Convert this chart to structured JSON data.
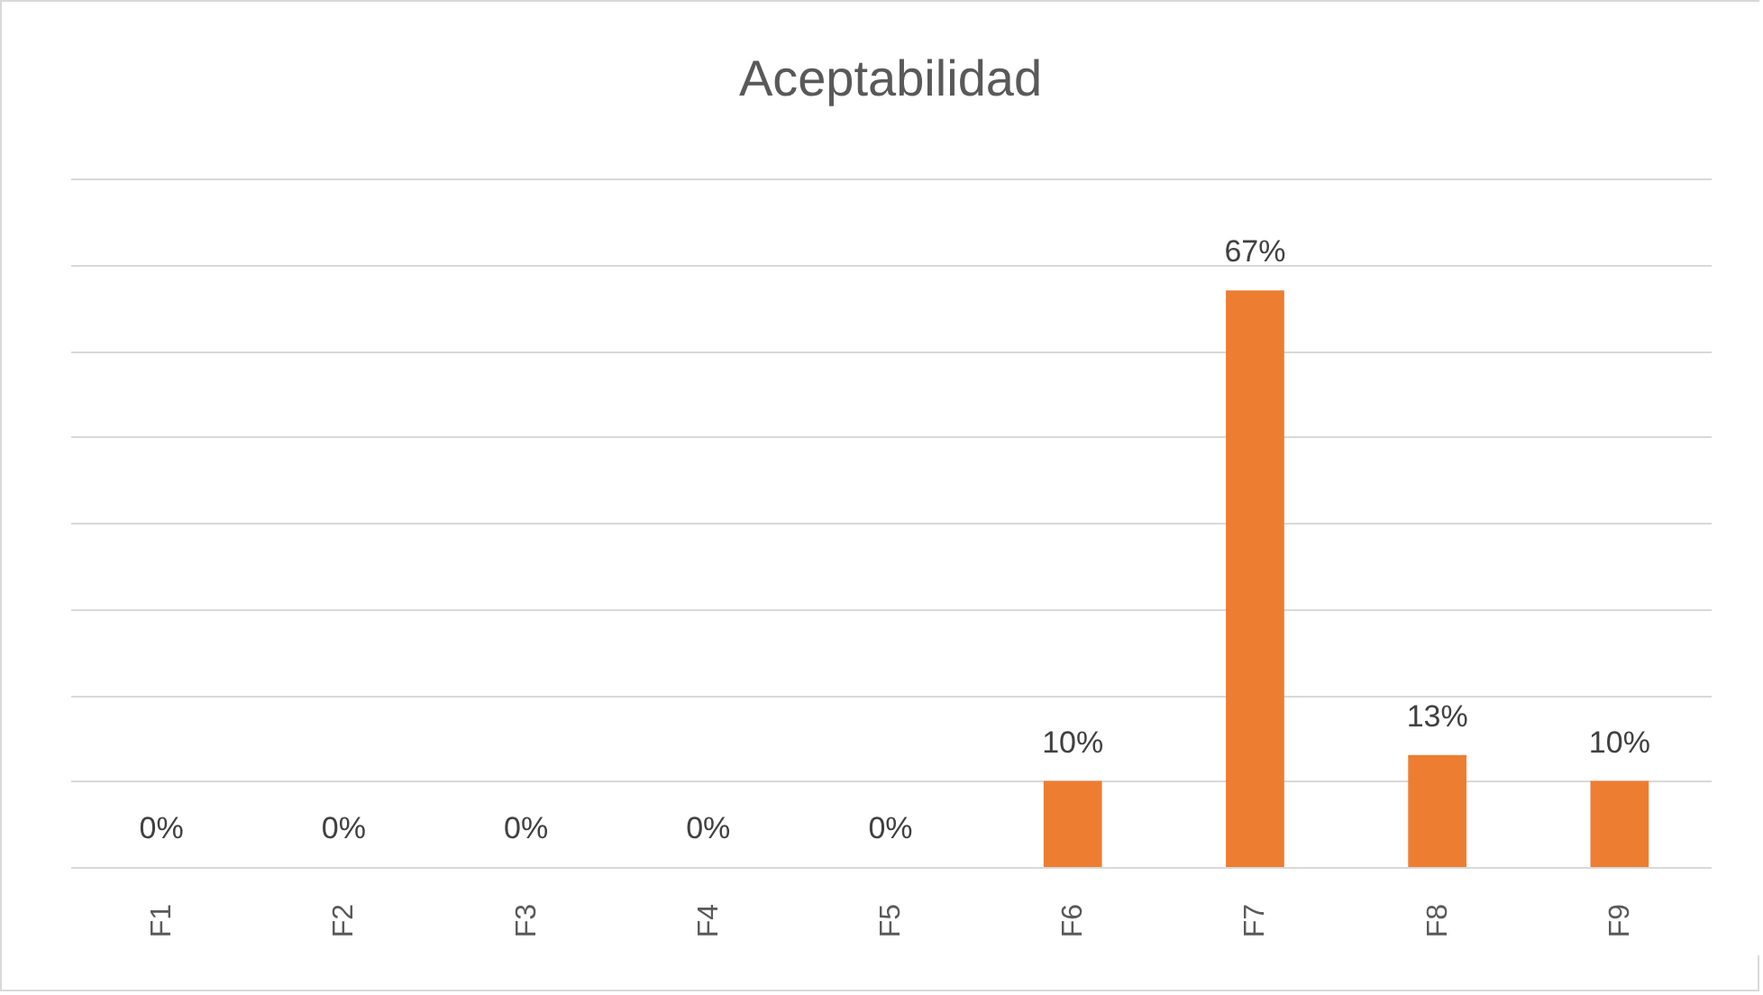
{
  "chart_data": {
    "type": "bar",
    "title": "Aceptabilidad",
    "categories": [
      "F1",
      "F2",
      "F3",
      "F4",
      "F5",
      "F6",
      "F7",
      "F8",
      "F9"
    ],
    "values": [
      0,
      0,
      0,
      0,
      0,
      10,
      67,
      13,
      10
    ],
    "value_labels": [
      "0%",
      "0%",
      "0%",
      "0%",
      "0%",
      "10%",
      "67%",
      "13%",
      "10%"
    ],
    "color": "#ed7d31",
    "ylim": [
      0,
      80
    ],
    "yticks": [
      {
        "value": 0,
        "label": null
      },
      {
        "value": 10,
        "label": null
      },
      {
        "value": 20,
        "label": null
      },
      {
        "value": 30,
        "label": null
      },
      {
        "value": 40,
        "label": null
      },
      {
        "value": 50,
        "label": null
      },
      {
        "value": 60,
        "label": null
      },
      {
        "value": 70,
        "label": null
      },
      {
        "value": 80,
        "label": null
      }
    ],
    "grid": "y",
    "tick_labels": "x"
  }
}
